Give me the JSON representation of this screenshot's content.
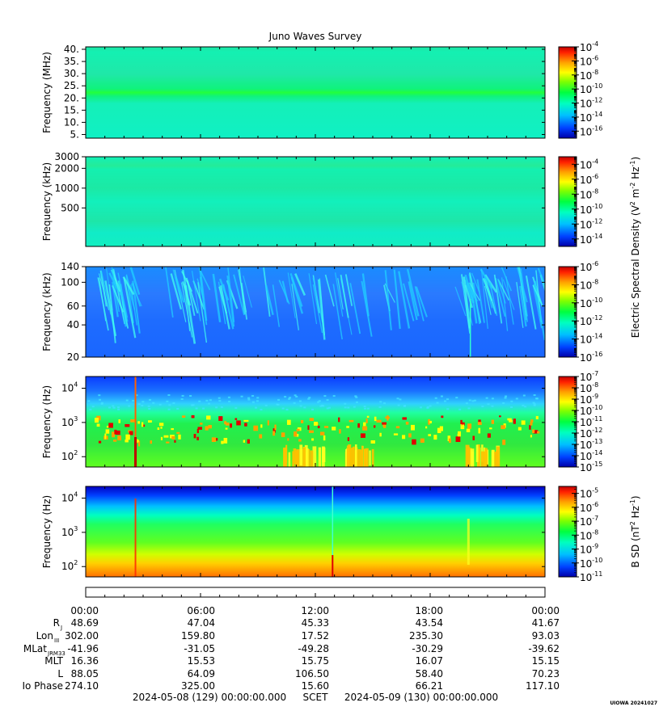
{
  "title": "Juno Waves Survey",
  "stamp": "UIOWA 20241027",
  "colors": [
    "#0000a8",
    "#0040ff",
    "#00c0ff",
    "#00ffc0",
    "#00ff40",
    "#80ff00",
    "#ffff00",
    "#ffa000",
    "#ff2000",
    "#c00000"
  ],
  "chart_data": [
    {
      "type": "heatmap",
      "ylabel": "Frequency (MHz)",
      "yticks": [
        "40.",
        "35.",
        "30.",
        "25.",
        "20.",
        "15.",
        "10.",
        "5."
      ],
      "ytick_values": [
        40,
        35,
        30,
        25,
        20,
        15,
        10,
        5
      ],
      "ylim": [
        3.5,
        41
      ],
      "yscale": "linear",
      "colorbar_ticks": [
        "10",
        "10",
        "10",
        "10",
        "10",
        "10",
        "10"
      ],
      "colorbar_exponents": [
        "-4",
        "-6",
        "-8",
        "-10",
        "-12",
        "-14",
        "-16"
      ],
      "colorbar_range": [
        -17,
        -4
      ]
    },
    {
      "type": "heatmap",
      "ylabel": "Frequency (kHz)",
      "yticks": [
        "3000",
        "2000",
        "1000",
        "500"
      ],
      "ytick_values": [
        3000,
        2000,
        1000,
        500
      ],
      "ylim": [
        130,
        3000
      ],
      "yscale": "log",
      "colorbar_ticks": [
        "10",
        "10",
        "10",
        "10",
        "10",
        "10"
      ],
      "colorbar_exponents": [
        "-4",
        "-6",
        "-8",
        "-10",
        "-12",
        "-14"
      ],
      "colorbar_range": [
        -15,
        -3
      ]
    },
    {
      "type": "heatmap",
      "ylabel": "Frequency (kHz)",
      "yticks": [
        "140",
        "100",
        "60",
        "40",
        "20"
      ],
      "ytick_values": [
        140,
        100,
        60,
        40,
        20
      ],
      "ylim": [
        20,
        140
      ],
      "yscale": "log",
      "colorbar_ticks": [
        "10",
        "10",
        "10",
        "10",
        "10",
        "10"
      ],
      "colorbar_exponents": [
        "-6",
        "-8",
        "-10",
        "-12",
        "-14",
        "-16"
      ],
      "colorbar_range": [
        -16,
        -6
      ]
    },
    {
      "type": "heatmap",
      "ylabel": "Frequency (Hz)",
      "yticks": [
        "10",
        "10",
        "10"
      ],
      "ytick_exponents": [
        "4",
        "3",
        "2"
      ],
      "ytick_values": [
        10000,
        1000,
        100
      ],
      "ylim": [
        50,
        22000
      ],
      "yscale": "log",
      "colorbar_ticks": [
        "10",
        "10",
        "10",
        "10",
        "10",
        "10",
        "10",
        "10",
        "10"
      ],
      "colorbar_exponents": [
        "-7",
        "-8",
        "-9",
        "-10",
        "-11",
        "-12",
        "-13",
        "-14",
        "-15"
      ],
      "colorbar_range": [
        -15,
        -7
      ]
    },
    {
      "type": "heatmap",
      "ylabel": "Frequency (Hz)",
      "yticks": [
        "10",
        "10",
        "10"
      ],
      "ytick_exponents": [
        "4",
        "3",
        "2"
      ],
      "ytick_values": [
        10000,
        1000,
        100
      ],
      "ylim": [
        50,
        22000
      ],
      "yscale": "log",
      "colorbar_ticks": [
        "10",
        "10",
        "10",
        "10",
        "10",
        "10",
        "10"
      ],
      "colorbar_exponents": [
        "-5",
        "-6",
        "-7",
        "-8",
        "-9",
        "-10",
        "-11"
      ],
      "colorbar_range": [
        -11,
        -4.5
      ]
    }
  ],
  "colorbar_labels": {
    "electric": "Electric Spectral Density (V",
    "electric_tail": ")",
    "magnetic": "B SD (nT",
    "magnetic_tail": ")"
  },
  "time_axis": {
    "ticks": [
      "00:00",
      "06:00",
      "12:00",
      "18:00",
      "00:00"
    ],
    "tick_hours": [
      0,
      6,
      12,
      18,
      24
    ],
    "xlim": [
      0,
      24
    ]
  },
  "ephemeris": {
    "rows": [
      {
        "label": "R",
        "sub": "J",
        "values": [
          "48.69",
          "47.04",
          "45.33",
          "43.54",
          "41.67"
        ]
      },
      {
        "label": "Lon",
        "sub": "III",
        "values": [
          "302.00",
          "159.80",
          "17.52",
          "235.30",
          "93.03"
        ]
      },
      {
        "label": "MLat",
        "sub": "JRM33",
        "values": [
          "-41.96",
          "-31.05",
          "-49.28",
          "-30.29",
          "-39.62"
        ]
      },
      {
        "label": "MLT",
        "sub": "",
        "values": [
          "16.36",
          "15.53",
          "15.75",
          "16.07",
          "15.15"
        ]
      },
      {
        "label": "L",
        "sub": "",
        "values": [
          "88.05",
          "64.09",
          "106.50",
          "58.40",
          "70.23"
        ]
      },
      {
        "label": "Io Phase",
        "sub": "",
        "values": [
          "274.10",
          "325.00",
          "15.60",
          "66.21",
          "117.10"
        ]
      }
    ]
  },
  "footer": {
    "start": "2024-05-08 (129) 00:00:00.000",
    "scet": "SCET",
    "end": "2024-05-09 (130) 00:00:00.000"
  }
}
